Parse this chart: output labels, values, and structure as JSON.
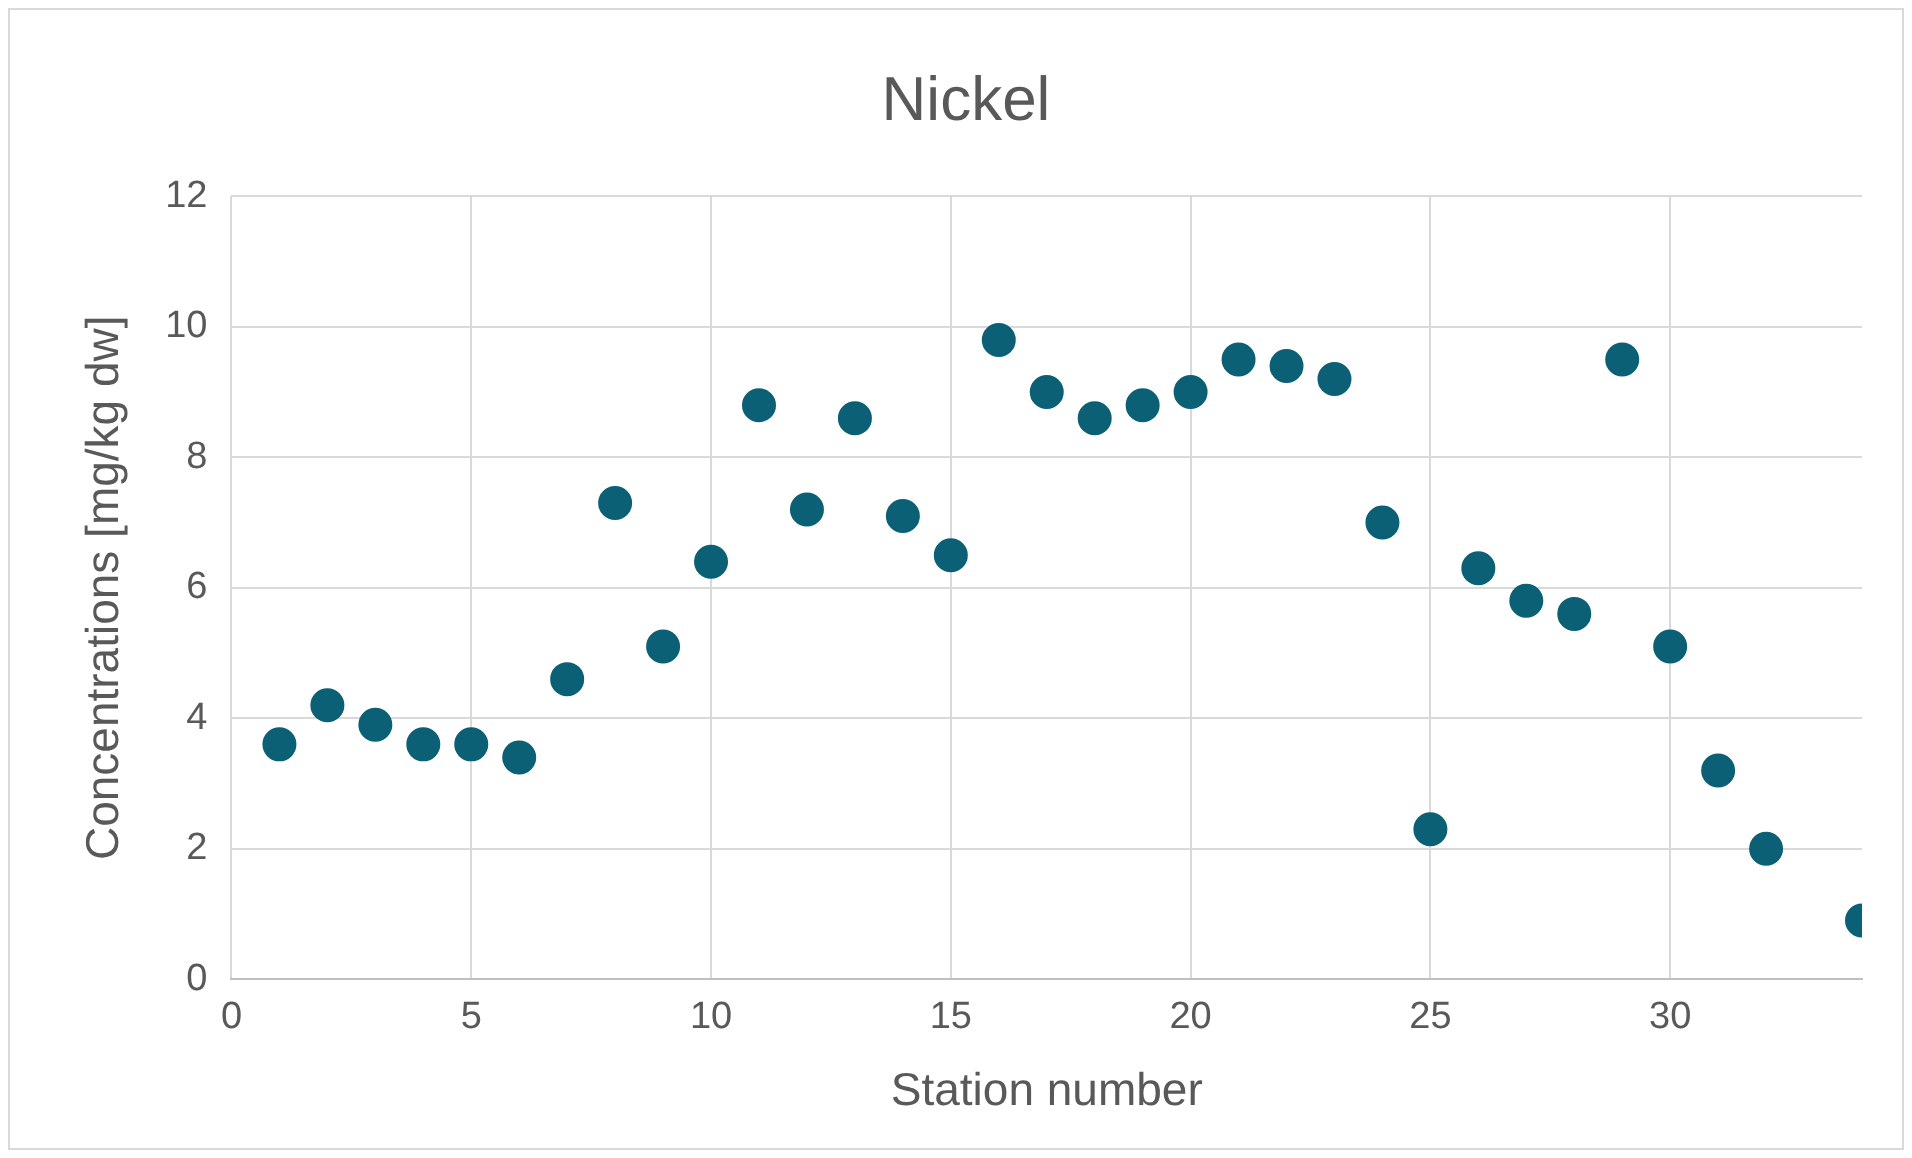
{
  "chart_data": {
    "type": "scatter",
    "title": "Nickel",
    "xlabel": "Station number",
    "ylabel": "Concentrations [mg/kg dw]",
    "x": [
      1,
      2,
      3,
      4,
      5,
      6,
      7,
      8,
      9,
      10,
      11,
      12,
      13,
      14,
      15,
      16,
      17,
      18,
      19,
      20,
      21,
      22,
      23,
      24,
      25,
      26,
      27,
      28,
      29,
      30,
      31,
      32,
      34
    ],
    "series": [
      {
        "color": "#0b6076",
        "values": [
          3.6,
          4.2,
          3.9,
          3.6,
          3.6,
          3.4,
          4.6,
          7.3,
          5.1,
          6.4,
          8.8,
          7.2,
          8.6,
          7.1,
          6.5,
          9.8,
          9.0,
          8.6,
          8.8,
          9.0,
          9.5,
          9.4,
          9.2,
          7.0,
          2.3,
          6.3,
          5.8,
          5.6,
          9.5,
          5.1,
          3.2,
          2.0,
          0.9
        ]
      }
    ],
    "xlim": [
      0,
      34
    ],
    "xticks": [
      0,
      5,
      10,
      15,
      20,
      25,
      30
    ],
    "ylim": [
      0,
      12
    ],
    "yticks": [
      0,
      2,
      4,
      6,
      8,
      10,
      12
    ],
    "grid": true,
    "marker": "circle",
    "legend": false
  }
}
